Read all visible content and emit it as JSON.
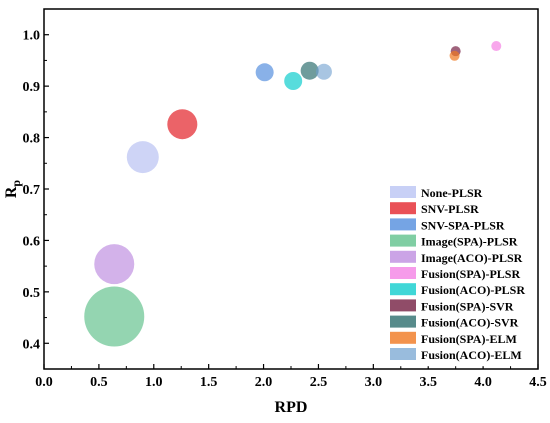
{
  "chart_data": {
    "type": "bubble",
    "xlabel": "RPD",
    "ylabel": "R",
    "ylabel_subscript": "p",
    "xlim": [
      0.0,
      4.5
    ],
    "ylim": [
      0.35,
      1.05
    ],
    "xticks": [
      "0.0",
      "0.5",
      "1.0",
      "1.5",
      "2.0",
      "2.5",
      "3.0",
      "3.5",
      "4.0",
      "4.5"
    ],
    "yticks": [
      "0.4",
      "0.5",
      "0.6",
      "0.7",
      "0.8",
      "0.9",
      "1.0"
    ],
    "grid": false,
    "legend_position": "bottom-right",
    "series": [
      {
        "name": "None-PLSR",
        "x": 0.9,
        "y": 0.762,
        "color": "#c5cdf5",
        "alpha": 0.85
      },
      {
        "name": "SNV-PLSR",
        "x": 1.26,
        "y": 0.826,
        "color": "#e8484e",
        "alpha": 0.85
      },
      {
        "name": "SNV-SPA-PLSR",
        "x": 2.01,
        "y": 0.927,
        "color": "#3b7dd8",
        "alpha": 0.6
      },
      {
        "name": "Image(SPA)-PLSR",
        "x": 0.64,
        "y": 0.452,
        "color": "#3cb371",
        "alpha": 0.55
      },
      {
        "name": "Image(ACO)-PLSR",
        "x": 0.64,
        "y": 0.554,
        "color": "#b57edc",
        "alpha": 0.6
      },
      {
        "name": "Fusion(SPA)-PLSR",
        "x": 4.12,
        "y": 0.978,
        "color": "#f58ae6",
        "alpha": 0.75
      },
      {
        "name": "Fusion(ACO)-PLSR",
        "x": 2.27,
        "y": 0.91,
        "color": "#1fd0d0",
        "alpha": 0.75
      },
      {
        "name": "Fusion(SPA)-SVR",
        "x": 3.75,
        "y": 0.968,
        "color": "#6b1035",
        "alpha": 0.65
      },
      {
        "name": "Fusion(ACO)-SVR",
        "x": 2.42,
        "y": 0.93,
        "color": "#0f5a5a",
        "alpha": 0.6
      },
      {
        "name": "Fusion(SPA)-ELM",
        "x": 3.74,
        "y": 0.959,
        "color": "#f07820",
        "alpha": 0.7
      },
      {
        "name": "Fusion(ACO)-ELM",
        "x": 2.55,
        "y": 0.928,
        "color": "#6e9fcf",
        "alpha": 0.6
      }
    ]
  }
}
